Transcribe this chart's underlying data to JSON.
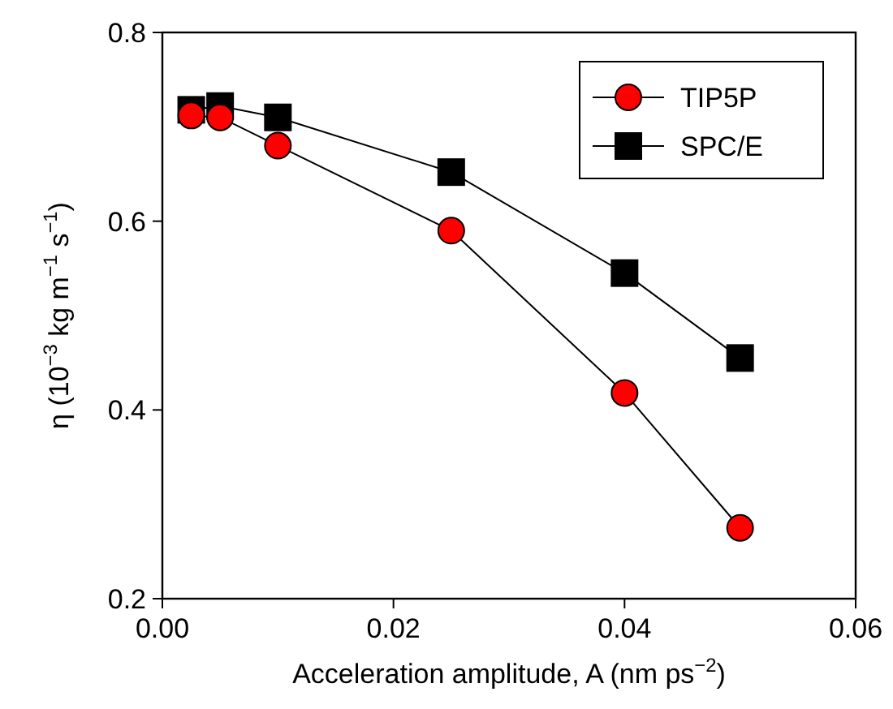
{
  "chart_data": {
    "type": "line",
    "xlabel": "Acceleration amplitude, A (nm ps$^{−2}$)",
    "ylabel": "η (10$^{−3}$ kg m$^{−1}$ s$^{−1}$)",
    "xlim": [
      0,
      0.06
    ],
    "ylim": [
      0.2,
      0.8
    ],
    "xticks": [
      {
        "value": 0,
        "label": "0.00"
      },
      {
        "value": 0.02,
        "label": "0.02"
      },
      {
        "value": 0.04,
        "label": "0.04"
      },
      {
        "value": 0.06,
        "label": "0.06"
      }
    ],
    "yticks": [
      0.2,
      0.4,
      0.6,
      0.8
    ],
    "legend": "top right",
    "grid": false,
    "line_style": "solid",
    "series": [
      {
        "name": "TIP5P",
        "color": "#ff0000",
        "marker": "circle",
        "x": [
          0.0025,
          0.005,
          0.01,
          0.025,
          0.04,
          0.05
        ],
        "values": [
          0.712,
          0.71,
          0.68,
          0.59,
          0.418,
          0.275
        ]
      },
      {
        "name": "SPC/E",
        "color": "#000000",
        "marker": "square",
        "x": [
          0.0025,
          0.005,
          0.01,
          0.025,
          0.04,
          0.05
        ],
        "values": [
          0.718,
          0.722,
          0.71,
          0.652,
          0.545,
          0.455
        ]
      }
    ]
  }
}
